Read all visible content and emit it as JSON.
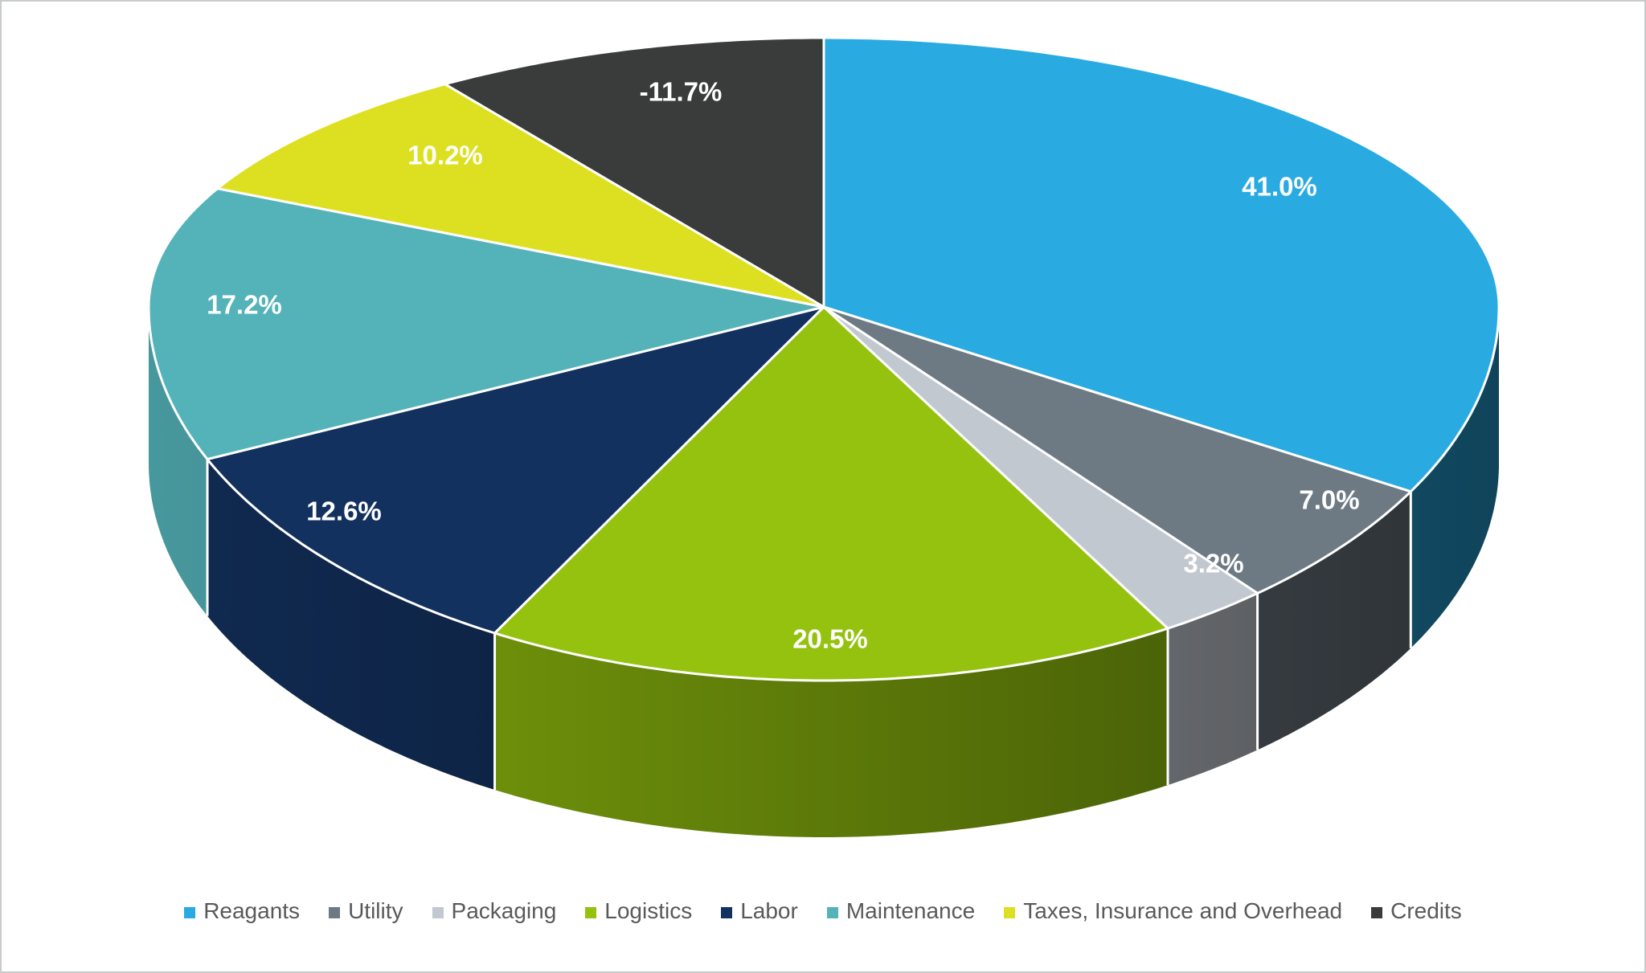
{
  "chart_data": {
    "type": "pie",
    "projection": "3d",
    "title": "",
    "legend_position": "bottom",
    "start_angle_deg": 0,
    "direction": "clockwise",
    "data_label_color": "#FFFFFF",
    "slices": [
      {
        "name": "Reagants",
        "value": 41.0,
        "display": "41.0%",
        "color": "#29ABE2"
      },
      {
        "name": "Utility",
        "value": 7.0,
        "display": "7.0%",
        "color": "#6D7A84"
      },
      {
        "name": "Packaging",
        "value": 3.2,
        "display": "3.2%",
        "color": "#C2C8D0"
      },
      {
        "name": "Logistics",
        "value": 20.5,
        "display": "20.5%",
        "color": "#94C20E"
      },
      {
        "name": "Labor",
        "value": 12.6,
        "display": "12.6%",
        "color": "#13315F"
      },
      {
        "name": "Maintenance",
        "value": 17.2,
        "display": "17.2%",
        "color": "#54B3B9"
      },
      {
        "name": "Taxes, Insurance and Overhead",
        "value": 10.2,
        "display": "10.2%",
        "color": "#DDE021"
      },
      {
        "name": "Credits",
        "value": -11.7,
        "display": "-11.7%",
        "color": "#3A3C3B"
      }
    ]
  }
}
